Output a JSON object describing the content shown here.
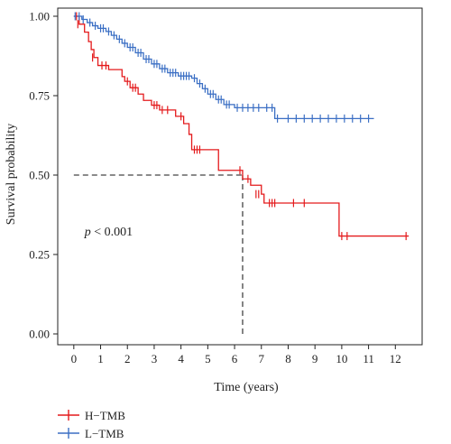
{
  "chart_data": {
    "type": "line",
    "subtype": "kaplan-meier",
    "xlabel": "Time (years)",
    "ylabel": "Survival probability",
    "xlim": [
      -0.6,
      13.0
    ],
    "ylim": [
      0,
      1.0
    ],
    "xticks": [
      0,
      1,
      2,
      3,
      4,
      5,
      6,
      7,
      8,
      9,
      10,
      11,
      12
    ],
    "yticks": [
      0.0,
      0.25,
      0.5,
      0.75,
      1.0
    ],
    "ytick_labels": [
      "0.00",
      "0.25",
      "0.50",
      "0.75",
      "1.00"
    ],
    "grid": false,
    "legend_position": "bottom-left",
    "annotation": {
      "prefix": "p",
      "text": " < 0.001",
      "x": 0.4,
      "y": 0.31
    },
    "median_line": {
      "x": 6.3,
      "y": 0.5
    },
    "series": [
      {
        "name": "H−TMB",
        "color": "#e41a1c",
        "steps": [
          [
            0,
            1.0
          ],
          [
            0.2,
            0.975
          ],
          [
            0.4,
            0.95
          ],
          [
            0.55,
            0.92
          ],
          [
            0.65,
            0.895
          ],
          [
            0.75,
            0.87
          ],
          [
            0.9,
            0.845
          ],
          [
            1.3,
            0.832
          ],
          [
            1.8,
            0.81
          ],
          [
            1.9,
            0.795
          ],
          [
            2.1,
            0.775
          ],
          [
            2.4,
            0.755
          ],
          [
            2.6,
            0.735
          ],
          [
            2.9,
            0.72
          ],
          [
            3.2,
            0.705
          ],
          [
            3.8,
            0.685
          ],
          [
            4.1,
            0.662
          ],
          [
            4.3,
            0.628
          ],
          [
            4.4,
            0.58
          ],
          [
            5.4,
            0.515
          ],
          [
            6.3,
            0.488
          ],
          [
            6.6,
            0.468
          ],
          [
            7.0,
            0.44
          ],
          [
            7.1,
            0.412
          ],
          [
            9.9,
            0.308
          ],
          [
            12.5,
            0.308
          ]
        ],
        "censors": [
          [
            0.1,
            1.0
          ],
          [
            0.15,
            0.975
          ],
          [
            0.7,
            0.87
          ],
          [
            1.05,
            0.845
          ],
          [
            1.2,
            0.845
          ],
          [
            2.0,
            0.795
          ],
          [
            2.2,
            0.775
          ],
          [
            2.3,
            0.775
          ],
          [
            3.0,
            0.72
          ],
          [
            3.1,
            0.72
          ],
          [
            3.3,
            0.705
          ],
          [
            3.5,
            0.705
          ],
          [
            4.0,
            0.685
          ],
          [
            4.5,
            0.58
          ],
          [
            4.6,
            0.58
          ],
          [
            4.7,
            0.58
          ],
          [
            6.2,
            0.515
          ],
          [
            6.5,
            0.488
          ],
          [
            6.8,
            0.44
          ],
          [
            6.9,
            0.44
          ],
          [
            7.3,
            0.412
          ],
          [
            7.4,
            0.412
          ],
          [
            7.5,
            0.412
          ],
          [
            8.2,
            0.412
          ],
          [
            8.6,
            0.412
          ],
          [
            10.0,
            0.308
          ],
          [
            10.2,
            0.308
          ],
          [
            12.4,
            0.308
          ]
        ]
      },
      {
        "name": "L−TMB",
        "color": "#3b6fc4",
        "steps": [
          [
            0,
            1.0
          ],
          [
            0.3,
            0.99
          ],
          [
            0.5,
            0.98
          ],
          [
            0.7,
            0.97
          ],
          [
            0.9,
            0.962
          ],
          [
            1.2,
            0.952
          ],
          [
            1.4,
            0.94
          ],
          [
            1.6,
            0.928
          ],
          [
            1.8,
            0.915
          ],
          [
            2.0,
            0.902
          ],
          [
            2.3,
            0.885
          ],
          [
            2.6,
            0.865
          ],
          [
            2.9,
            0.85
          ],
          [
            3.2,
            0.835
          ],
          [
            3.5,
            0.822
          ],
          [
            3.9,
            0.812
          ],
          [
            4.4,
            0.805
          ],
          [
            4.6,
            0.788
          ],
          [
            4.8,
            0.772
          ],
          [
            5.0,
            0.755
          ],
          [
            5.3,
            0.738
          ],
          [
            5.6,
            0.722
          ],
          [
            6.0,
            0.712
          ],
          [
            7.5,
            0.678
          ],
          [
            11.2,
            0.678
          ]
        ],
        "censors": [
          [
            0.05,
            1.0
          ],
          [
            0.2,
            1.0
          ],
          [
            0.35,
            0.99
          ],
          [
            0.6,
            0.98
          ],
          [
            0.8,
            0.97
          ],
          [
            1.0,
            0.962
          ],
          [
            1.1,
            0.962
          ],
          [
            1.3,
            0.952
          ],
          [
            1.5,
            0.94
          ],
          [
            1.7,
            0.928
          ],
          [
            1.9,
            0.915
          ],
          [
            2.1,
            0.902
          ],
          [
            2.2,
            0.902
          ],
          [
            2.4,
            0.885
          ],
          [
            2.5,
            0.885
          ],
          [
            2.7,
            0.865
          ],
          [
            2.8,
            0.865
          ],
          [
            3.0,
            0.85
          ],
          [
            3.1,
            0.85
          ],
          [
            3.3,
            0.835
          ],
          [
            3.4,
            0.835
          ],
          [
            3.6,
            0.822
          ],
          [
            3.7,
            0.822
          ],
          [
            3.8,
            0.822
          ],
          [
            4.0,
            0.812
          ],
          [
            4.1,
            0.812
          ],
          [
            4.2,
            0.812
          ],
          [
            4.3,
            0.812
          ],
          [
            4.5,
            0.805
          ],
          [
            4.7,
            0.788
          ],
          [
            4.9,
            0.772
          ],
          [
            5.1,
            0.755
          ],
          [
            5.2,
            0.755
          ],
          [
            5.4,
            0.738
          ],
          [
            5.5,
            0.738
          ],
          [
            5.7,
            0.722
          ],
          [
            5.8,
            0.722
          ],
          [
            6.1,
            0.712
          ],
          [
            6.3,
            0.712
          ],
          [
            6.5,
            0.712
          ],
          [
            6.7,
            0.712
          ],
          [
            6.9,
            0.712
          ],
          [
            7.2,
            0.712
          ],
          [
            7.4,
            0.712
          ],
          [
            7.6,
            0.678
          ],
          [
            8.0,
            0.678
          ],
          [
            8.3,
            0.678
          ],
          [
            8.6,
            0.678
          ],
          [
            8.9,
            0.678
          ],
          [
            9.2,
            0.678
          ],
          [
            9.5,
            0.678
          ],
          [
            9.8,
            0.678
          ],
          [
            10.1,
            0.678
          ],
          [
            10.4,
            0.678
          ],
          [
            10.7,
            0.678
          ],
          [
            11.0,
            0.678
          ]
        ]
      }
    ]
  }
}
